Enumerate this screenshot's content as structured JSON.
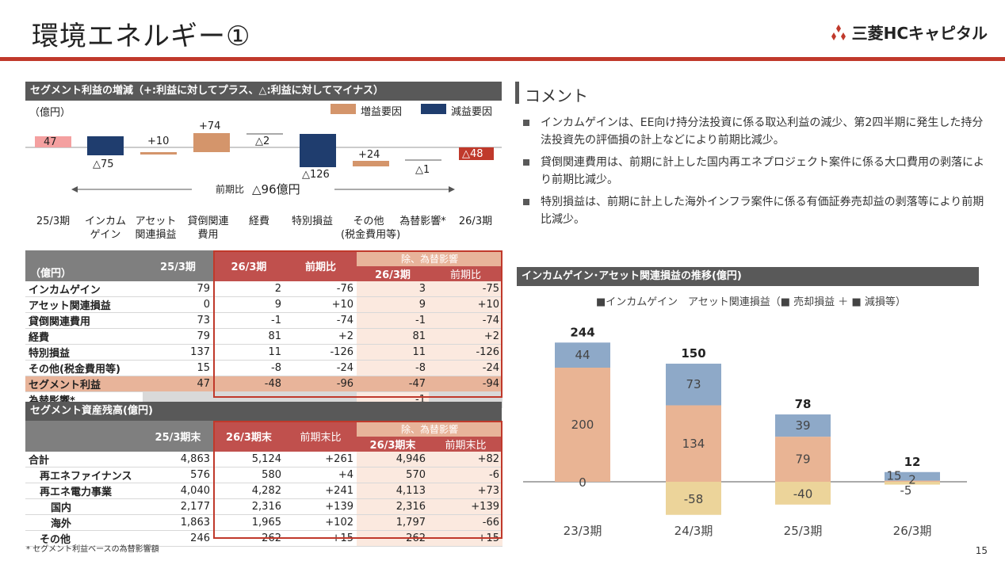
{
  "title": "環境エネルギー①",
  "logo_text": "三菱HCキャピタル",
  "page_number": "15",
  "waterfall": {
    "header": "セグメント利益の増減（+:利益に対してプラス、△:利益に対してマイナス）",
    "unit": "（億円）",
    "legend_up": "増益要因",
    "legend_down": "減益要因",
    "delta_label": "前期比",
    "delta_value": "△96億円",
    "categories": [
      "25/3期",
      "インカム\nゲイン",
      "アセット\n関連損益",
      "貸倒関連\n費用",
      "経費",
      "特別損益",
      "その他\n(税金費用等)",
      "為替影響*",
      "26/3期"
    ],
    "bar_labels": [
      "47",
      "△75",
      "+10",
      "+74",
      "△2",
      "△126",
      "+24",
      "△1",
      "△48"
    ]
  },
  "profit_table": {
    "unit": "（億円）",
    "col_prev": "25/3期",
    "col_curr": "26/3期",
    "col_yoy": "前期比",
    "col_excl": "除、為替影響",
    "col_excl_curr": "26/3期",
    "col_excl_yoy": "前期比",
    "rows": [
      {
        "label": "インカムゲイン",
        "prev": "79",
        "curr": "2",
        "yoy": "-76",
        "ex_curr": "3",
        "ex_yoy": "-75"
      },
      {
        "label": "アセット関連損益",
        "prev": "0",
        "curr": "9",
        "yoy": "+10",
        "ex_curr": "9",
        "ex_yoy": "+10"
      },
      {
        "label": "貸倒関連費用",
        "prev": "73",
        "curr": "-1",
        "yoy": "-74",
        "ex_curr": "-1",
        "ex_yoy": "-74"
      },
      {
        "label": "経費",
        "prev": "79",
        "curr": "81",
        "yoy": "+2",
        "ex_curr": "81",
        "ex_yoy": "+2"
      },
      {
        "label": "特別損益",
        "prev": "137",
        "curr": "11",
        "yoy": "-126",
        "ex_curr": "11",
        "ex_yoy": "-126"
      },
      {
        "label": "その他(税金費用等)",
        "prev": "15",
        "curr": "-8",
        "yoy": "-24",
        "ex_curr": "-8",
        "ex_yoy": "-24"
      },
      {
        "label": "セグメント利益",
        "prev": "47",
        "curr": "-48",
        "yoy": "-96",
        "ex_curr": "-47",
        "ex_yoy": "-94"
      },
      {
        "label": "為替影響*",
        "prev": "",
        "curr": "",
        "yoy": "",
        "ex_curr": "-1",
        "ex_yoy": ""
      }
    ]
  },
  "asset_table": {
    "header": "セグメント資産残高(億円)",
    "col_prev": "25/3期末",
    "col_curr": "26/3期末",
    "col_yoy": "前期末比",
    "col_excl": "除、為替影響",
    "col_excl_curr": "26/3期末",
    "col_excl_yoy": "前期末比",
    "rows": [
      {
        "label": "合計",
        "prev": "4,863",
        "curr": "5,124",
        "yoy": "+261",
        "ex_curr": "4,946",
        "ex_yoy": "+82",
        "indent": 0
      },
      {
        "label": "再エネファイナンス",
        "prev": "576",
        "curr": "580",
        "yoy": "+4",
        "ex_curr": "570",
        "ex_yoy": "-6",
        "indent": 1
      },
      {
        "label": "再エネ電力事業",
        "prev": "4,040",
        "curr": "4,282",
        "yoy": "+241",
        "ex_curr": "4,113",
        "ex_yoy": "+73",
        "indent": 1
      },
      {
        "label": "国内",
        "prev": "2,177",
        "curr": "2,316",
        "yoy": "+139",
        "ex_curr": "2,316",
        "ex_yoy": "+139",
        "indent": 2
      },
      {
        "label": "海外",
        "prev": "1,863",
        "curr": "1,965",
        "yoy": "+102",
        "ex_curr": "1,797",
        "ex_yoy": "-66",
        "indent": 2
      },
      {
        "label": "その他",
        "prev": "246",
        "curr": "262",
        "yoy": "+15",
        "ex_curr": "262",
        "ex_yoy": "+15",
        "indent": 1
      }
    ]
  },
  "footnote": "* セグメント利益ベースの為替影響額",
  "comment": {
    "title": "コメント",
    "bullets": [
      "インカムゲインは、EE向け持分法投資に係る取込利益の減少、第2四半期に発生した持分法投資先の評価損の計上などにより前期比減少。",
      "貸倒関連費用は、前期に計上した国内再エネプロジェクト案件に係る大口費用の剥落により前期比減少。",
      "特別損益は、前期に計上した海外インフラ案件に係る有価証券売却益の剥落等により前期比減少。"
    ]
  },
  "chart": {
    "header": "インカムゲイン･アセット関連損益の推移(億円)",
    "legend": "■インカムゲイン　アセット関連損益（■ 売却損益 ＋ ■ 減損等）",
    "colors": {
      "income": "#e9b494",
      "sale": "#8ea9c8",
      "impair": "#ecd49a"
    }
  },
  "chart_data": {
    "type": "bar",
    "stacked": true,
    "categories": [
      "23/3期",
      "24/3期",
      "25/3期",
      "26/3期"
    ],
    "series": [
      {
        "name": "インカムゲイン",
        "values": [
          200,
          134,
          79,
          2
        ]
      },
      {
        "name": "売却損益",
        "values": [
          44,
          73,
          39,
          15
        ]
      },
      {
        "name": "減損等",
        "values": [
          0,
          -58,
          -40,
          -5
        ]
      }
    ],
    "totals": [
      244,
      150,
      78,
      12
    ]
  }
}
